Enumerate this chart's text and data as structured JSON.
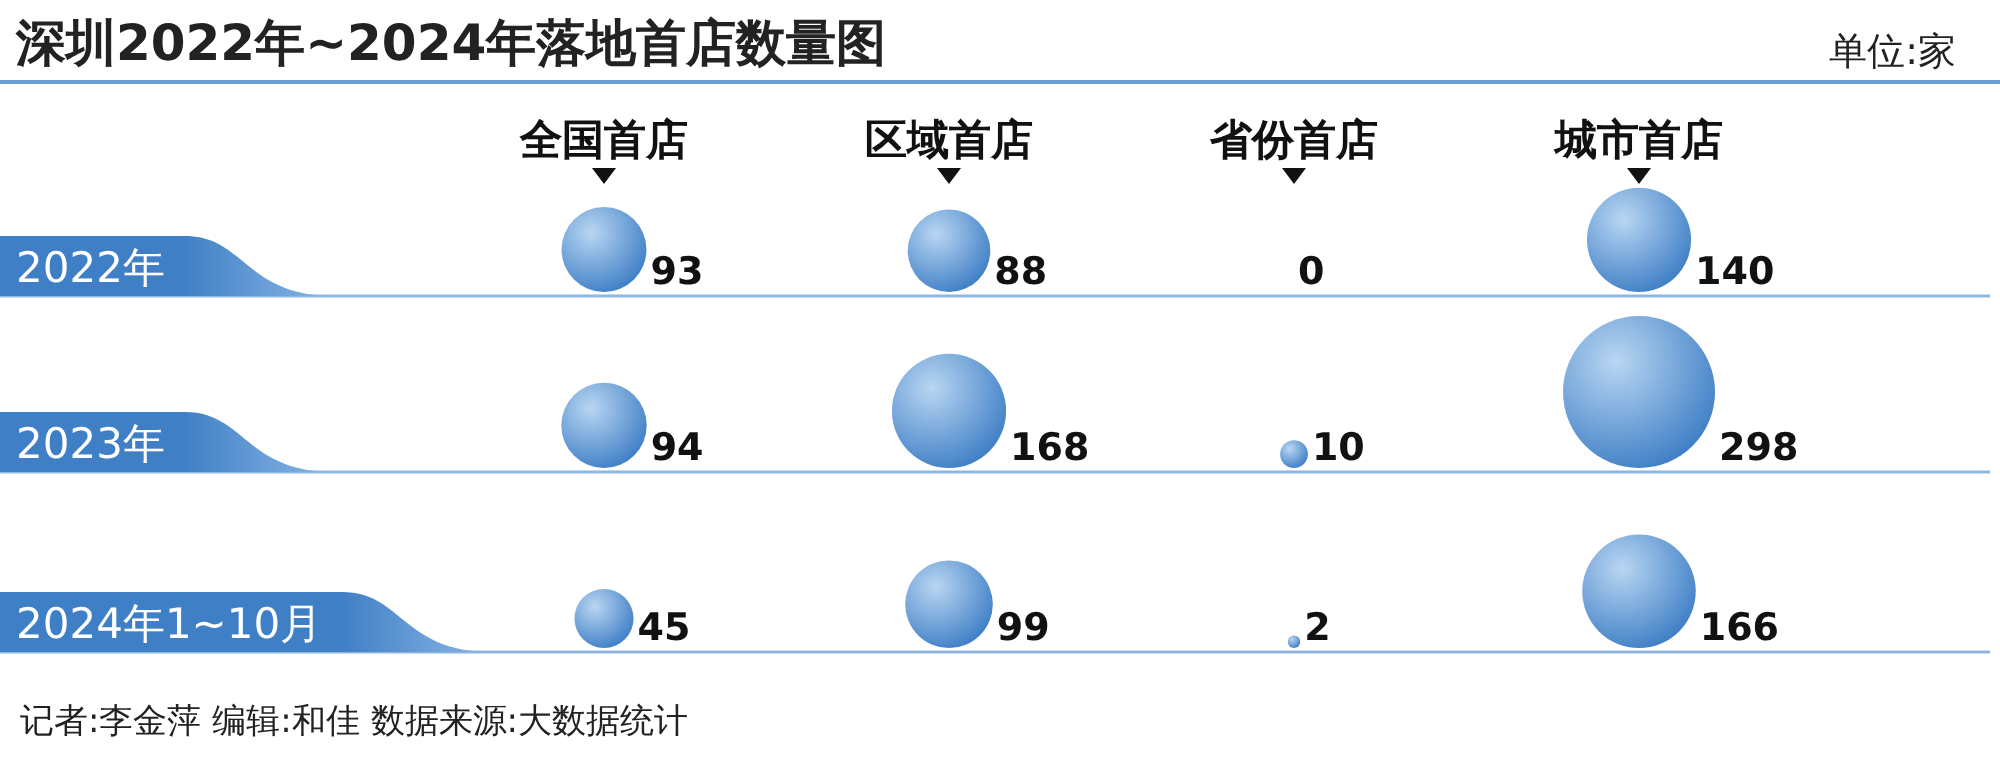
{
  "chart_data": {
    "type": "other",
    "title": "深圳2022年~2024年落地首店数量图",
    "annotations": [
      "单位:家",
      "记者:李金萍  编辑:和佳  数据来源:大数据统计"
    ],
    "categories": [
      "全国首店",
      "区域首店",
      "省份首店",
      "城市首店"
    ],
    "series": [
      {
        "name": "2022年",
        "color": "#3f7fc6",
        "values": [
          93,
          88,
          0,
          140
        ]
      },
      {
        "name": "2023年",
        "color": "#3f7fc6",
        "values": [
          94,
          168,
          10,
          298
        ]
      },
      {
        "name": "2024年1~10月",
        "color": "#3f7fc6",
        "values": [
          45,
          99,
          2,
          166
        ]
      }
    ],
    "data_labels": true
  }
}
